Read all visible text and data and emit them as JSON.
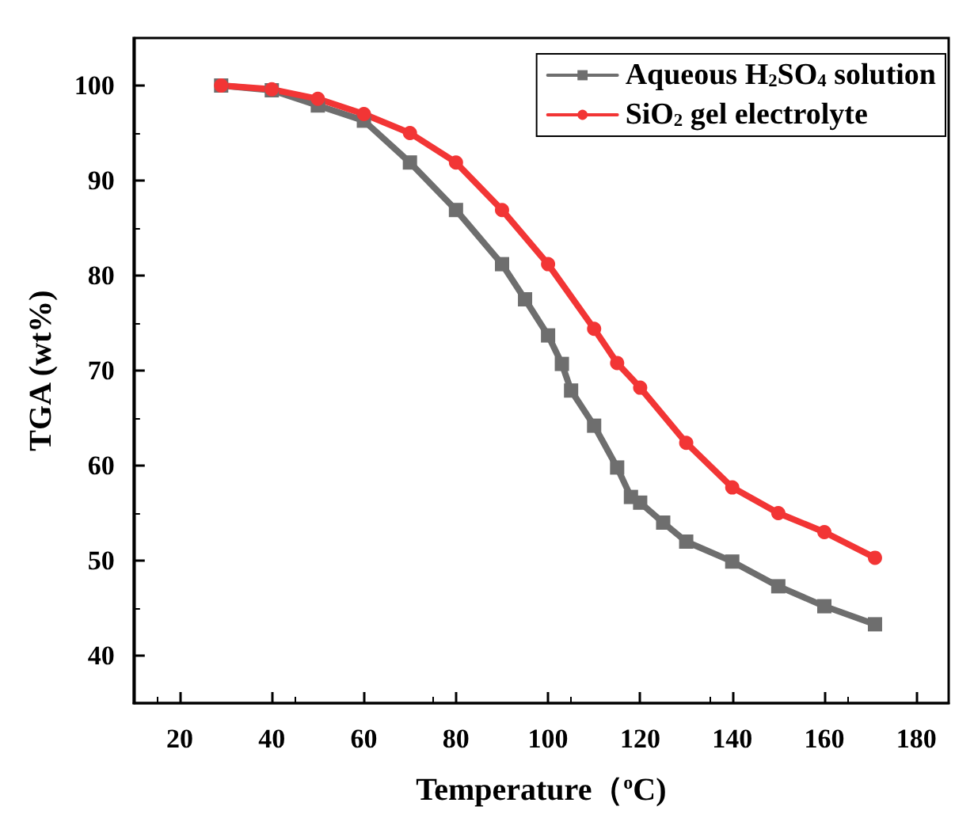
{
  "chart_data": {
    "type": "line",
    "xlabel": "Temperature（$^{o}$C)",
    "ylabel": "TGA (wt%)",
    "xlim": [
      10,
      187
    ],
    "xticks": [
      20,
      40,
      60,
      80,
      100,
      120,
      140,
      160,
      180
    ],
    "ylim": [
      35,
      105
    ],
    "yticks": [
      40,
      50,
      60,
      70,
      80,
      90,
      100
    ],
    "grid": false,
    "legend": "top right",
    "line_style": "solid",
    "series": [
      {
        "name": "Aqueous H$_{2}$SO$_{4}$ solution",
        "color": "#6e6e6e",
        "marker": "square",
        "x": [
          29,
          40,
          50,
          60,
          70,
          80,
          90,
          95,
          100,
          103,
          105,
          110,
          115,
          118,
          120,
          125,
          130,
          140,
          150,
          160,
          171
        ],
        "values": [
          100,
          99.5,
          97.9,
          96.3,
          91.9,
          86.9,
          81.2,
          77.5,
          73.7,
          70.7,
          67.9,
          64.2,
          59.8,
          56.7,
          56.1,
          54,
          52,
          49.9,
          47.3,
          45.2,
          43.3
        ]
      },
      {
        "name": "SiO$_{2}$ gel electrolyte",
        "color": "#f23535",
        "marker": "circle",
        "x": [
          29,
          40,
          50,
          60,
          70,
          80,
          90,
          100,
          110,
          115,
          120,
          130,
          140,
          150,
          160,
          171
        ],
        "values": [
          100,
          99.6,
          98.6,
          97,
          95,
          91.9,
          86.9,
          81.2,
          74.4,
          70.8,
          68.2,
          62.4,
          57.7,
          55,
          53,
          50.3
        ]
      }
    ]
  }
}
